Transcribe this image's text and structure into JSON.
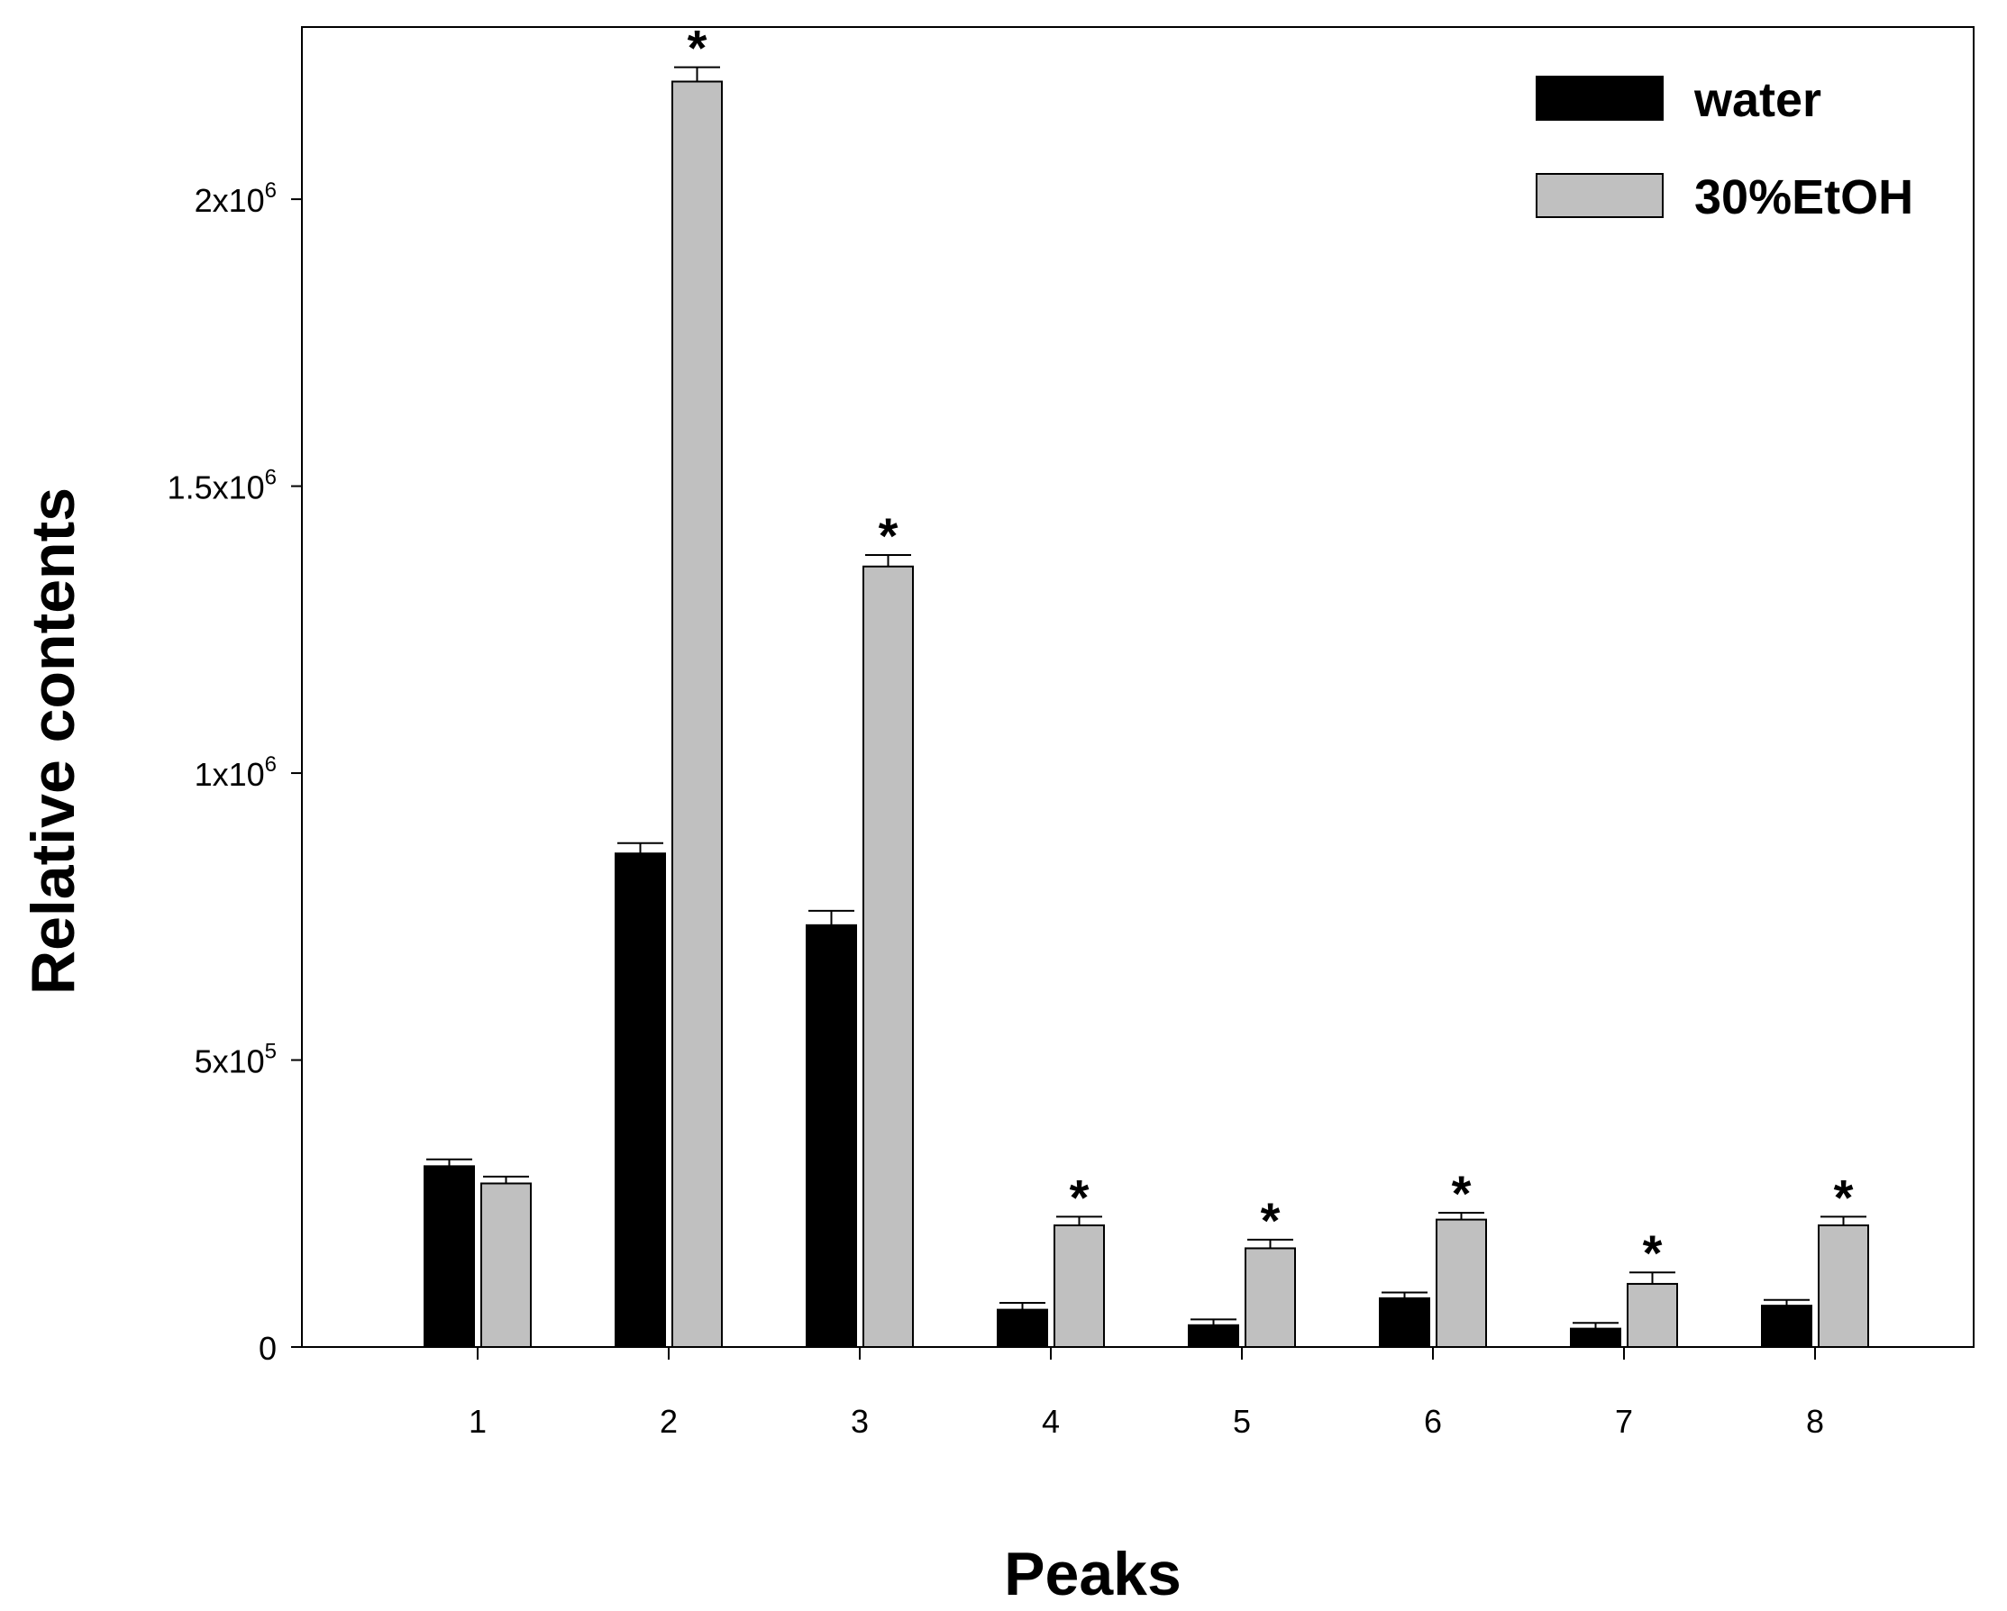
{
  "chart_data": {
    "type": "bar",
    "title": "",
    "xlabel": "Peaks",
    "ylabel": "Relative contents",
    "categories": [
      "1",
      "2",
      "3",
      "4",
      "5",
      "6",
      "7",
      "8"
    ],
    "ylim": [
      0,
      2300000
    ],
    "yticks": [
      {
        "value": 0,
        "label": "0"
      },
      {
        "value": 500000,
        "label": "5x10",
        "exp": "5"
      },
      {
        "value": 1000000,
        "label": "1x10",
        "exp": "6"
      },
      {
        "value": 1500000,
        "label": "1.5x10",
        "exp": "6"
      },
      {
        "value": 2000000,
        "label": "2x10",
        "exp": "6"
      }
    ],
    "series": [
      {
        "name": "water",
        "color": "#000000",
        "values": [
          315000,
          860000,
          735000,
          65000,
          38000,
          85000,
          32000,
          72000
        ],
        "errors": [
          12000,
          18000,
          25000,
          12000,
          10000,
          10000,
          10000,
          10000
        ]
      },
      {
        "name": "30%EtOH",
        "color": "#c0c0c0",
        "values": [
          285000,
          2205000,
          1360000,
          212000,
          172000,
          222000,
          110000,
          212000
        ],
        "errors": [
          12000,
          25000,
          20000,
          15000,
          15000,
          12000,
          20000,
          15000
        ]
      }
    ],
    "significance": [
      {
        "series": "30%EtOH",
        "category": "2",
        "marker": "*"
      },
      {
        "series": "30%EtOH",
        "category": "3",
        "marker": "*"
      },
      {
        "series": "30%EtOH",
        "category": "4",
        "marker": "*"
      },
      {
        "series": "30%EtOH",
        "category": "5",
        "marker": "*"
      },
      {
        "series": "30%EtOH",
        "category": "6",
        "marker": "*"
      },
      {
        "series": "30%EtOH",
        "category": "7",
        "marker": "*"
      },
      {
        "series": "30%EtOH",
        "category": "8",
        "marker": "*"
      }
    ],
    "legend_position": "top-right",
    "grid": false
  }
}
